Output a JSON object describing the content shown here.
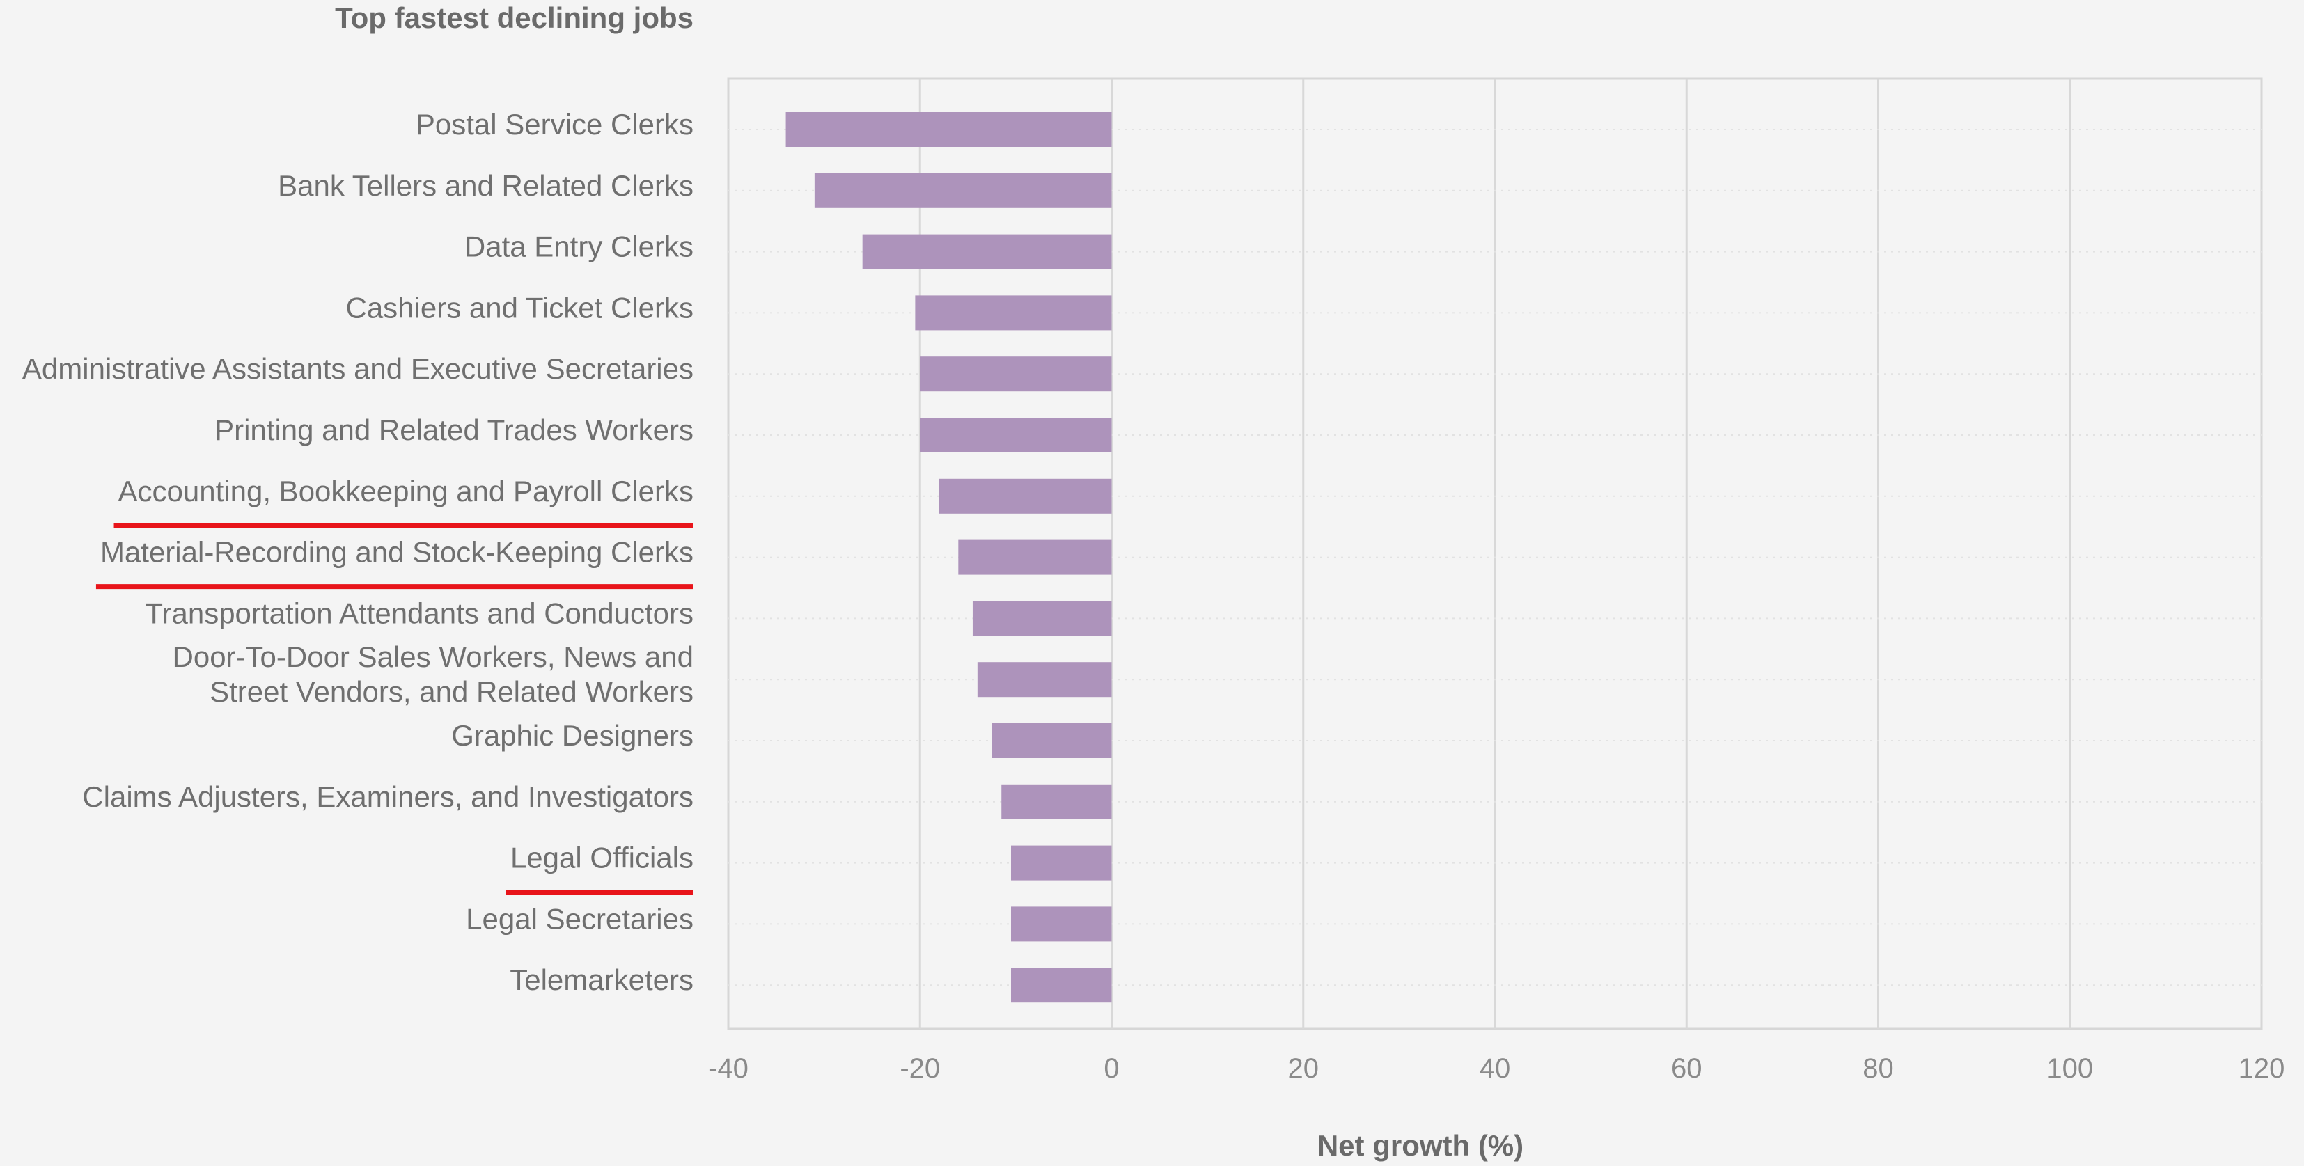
{
  "chart_data": {
    "type": "bar",
    "orientation": "horizontal",
    "title": "Top fastest declining jobs",
    "xlabel": "Net growth (%)",
    "ylabel": "",
    "categories": [
      "Postal Service Clerks",
      "Bank Tellers and Related Clerks",
      "Data Entry Clerks",
      "Cashiers and Ticket Clerks",
      "Administrative Assistants and Executive Secretaries",
      "Printing and Related Trades Workers",
      "Accounting, Bookkeeping and Payroll Clerks",
      "Material-Recording and Stock-Keeping Clerks",
      "Transportation Attendants and Conductors",
      "Door-To-Door Sales Workers, News and Street Vendors, and Related Workers",
      "Graphic Designers",
      "Claims Adjusters, Examiners, and Investigators",
      "Legal Officials",
      "Legal Secretaries",
      "Telemarketers"
    ],
    "category_lines": [
      [
        "Postal Service Clerks"
      ],
      [
        "Bank Tellers and Related Clerks"
      ],
      [
        "Data Entry Clerks"
      ],
      [
        "Cashiers and Ticket Clerks"
      ],
      [
        "Administrative Assistants and Executive Secretaries"
      ],
      [
        "Printing and Related Trades Workers"
      ],
      [
        "Accounting, Bookkeeping and Payroll Clerks"
      ],
      [
        "Material-Recording and Stock-Keeping Clerks"
      ],
      [
        "Transportation Attendants and Conductors"
      ],
      [
        "Door-To-Door Sales Workers, News and",
        "Street Vendors, and Related Workers"
      ],
      [
        "Graphic Designers"
      ],
      [
        "Claims Adjusters, Examiners, and Investigators"
      ],
      [
        "Legal Officials"
      ],
      [
        "Legal Secretaries"
      ],
      [
        "Telemarketers"
      ]
    ],
    "values": [
      -34,
      -31,
      -26,
      -20.5,
      -20,
      -20,
      -18,
      -16,
      -14.5,
      -14,
      -12.5,
      -11.5,
      -10.5,
      -10.5,
      -10.5
    ],
    "xlim": [
      -40,
      120
    ],
    "xticks": [
      -40,
      -20,
      0,
      20,
      40,
      60,
      80,
      100,
      120
    ],
    "xtick_labels": [
      "-40",
      "-20",
      "0",
      "20",
      "40",
      "60",
      "80",
      "100",
      "120"
    ],
    "grid": true,
    "legend": "none",
    "highlighted_categories": [
      "Accounting, Bookkeeping and Payroll Clerks",
      "Material-Recording and Stock-Keeping Clerks",
      "Legal Officials"
    ],
    "colors": {
      "bar": "#ad93bb",
      "highlight_underline": "#e8141a",
      "grid": "#d8d8d8",
      "background": "#f4f4f4"
    }
  }
}
